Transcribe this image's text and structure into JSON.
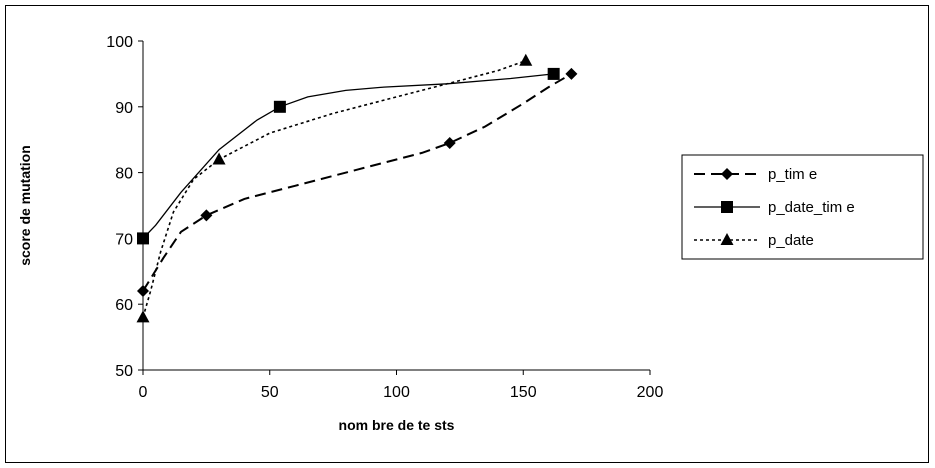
{
  "chart_data": {
    "type": "line",
    "title": "",
    "xlabel": "nom bre de te sts",
    "ylabel": "score de mutation",
    "xlim": [
      0,
      200
    ],
    "ylim": [
      50,
      100
    ],
    "xticks": [
      0,
      50,
      100,
      150,
      200
    ],
    "yticks": [
      50,
      60,
      70,
      80,
      90,
      100
    ],
    "grid": false,
    "legend_position": "right",
    "series": [
      {
        "name": "p_tim e",
        "line_style": "dashed",
        "marker": "diamond",
        "color": "#000000",
        "x": [
          0,
          8,
          15,
          25,
          40,
          60,
          85,
          110,
          121,
          135,
          150,
          160,
          169
        ],
        "y": [
          62,
          67,
          71,
          73.5,
          76,
          78,
          80.5,
          83,
          84.5,
          87,
          90.5,
          93,
          95
        ],
        "marker_points": [
          [
            0,
            62
          ],
          [
            25,
            73.5
          ],
          [
            121,
            84.5
          ],
          [
            169,
            95
          ]
        ]
      },
      {
        "name": "p_date_tim e",
        "line_style": "solid",
        "marker": "square",
        "color": "#000000",
        "x": [
          0,
          5,
          15,
          30,
          45,
          54,
          65,
          80,
          95,
          120,
          145,
          162
        ],
        "y": [
          70,
          72,
          77,
          83.5,
          88,
          90,
          91.5,
          92.5,
          93,
          93.5,
          94.3,
          95
        ],
        "marker_points": [
          [
            0,
            70
          ],
          [
            54,
            90
          ],
          [
            162,
            95
          ]
        ]
      },
      {
        "name": "p_date",
        "line_style": "dotted",
        "marker": "triangle",
        "color": "#000000",
        "x": [
          0,
          3,
          7,
          12,
          20,
          30,
          50,
          75,
          100,
          125,
          140,
          151
        ],
        "y": [
          58,
          62,
          68,
          74,
          79,
          82,
          86,
          89,
          91.5,
          94,
          95.5,
          97
        ],
        "marker_points": [
          [
            0,
            58
          ],
          [
            30,
            82
          ],
          [
            151,
            97
          ]
        ]
      }
    ]
  }
}
